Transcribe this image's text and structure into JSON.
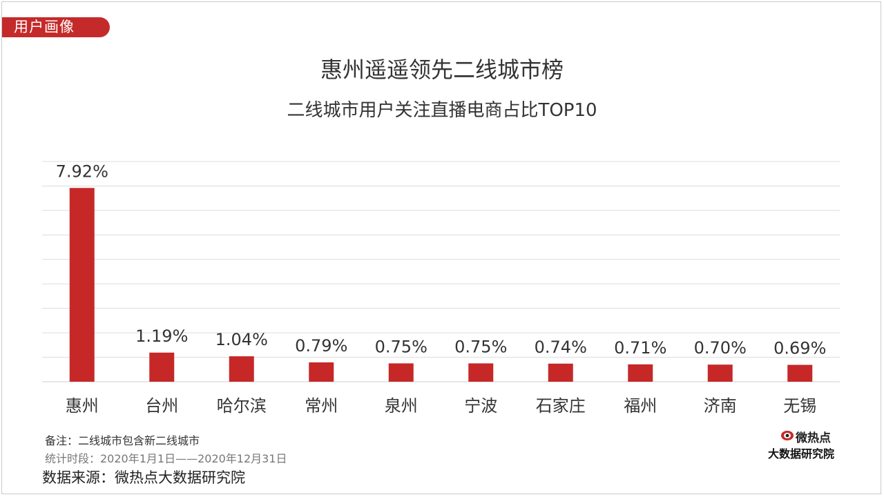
{
  "header": {
    "section_tag": "用户画像",
    "title": "惠州遥遥领先二线城市榜",
    "subtitle": "二线城市用户关注直播电商占比TOP10"
  },
  "footer": {
    "note": "备注：二线城市包含新二线城市",
    "period": "统计时段：2020年1月1日——2020年12月31日",
    "source": "数据来源：微热点大数据研究院"
  },
  "logo": {
    "top_text": "微热点",
    "bottom_text": "大数据研究院"
  },
  "colors": {
    "accent": "#c52a2a",
    "bar": "#c62828",
    "grid": "#dcdcdc",
    "text": "#333333"
  },
  "chart_data": {
    "type": "bar",
    "title": "二线城市用户关注直播电商占比TOP10",
    "categories": [
      "惠州",
      "台州",
      "哈尔滨",
      "常州",
      "泉州",
      "宁波",
      "石家庄",
      "福州",
      "济南",
      "无锡"
    ],
    "values": [
      7.92,
      1.19,
      1.04,
      0.79,
      0.75,
      0.75,
      0.74,
      0.71,
      0.7,
      0.69
    ],
    "value_labels": [
      "7.92%",
      "1.19%",
      "1.04%",
      "0.79%",
      "0.75%",
      "0.75%",
      "0.74%",
      "0.71%",
      "0.70%",
      "0.69%"
    ],
    "unit": "%",
    "ylim": [
      0,
      9
    ],
    "grid": true,
    "legend": "none"
  }
}
